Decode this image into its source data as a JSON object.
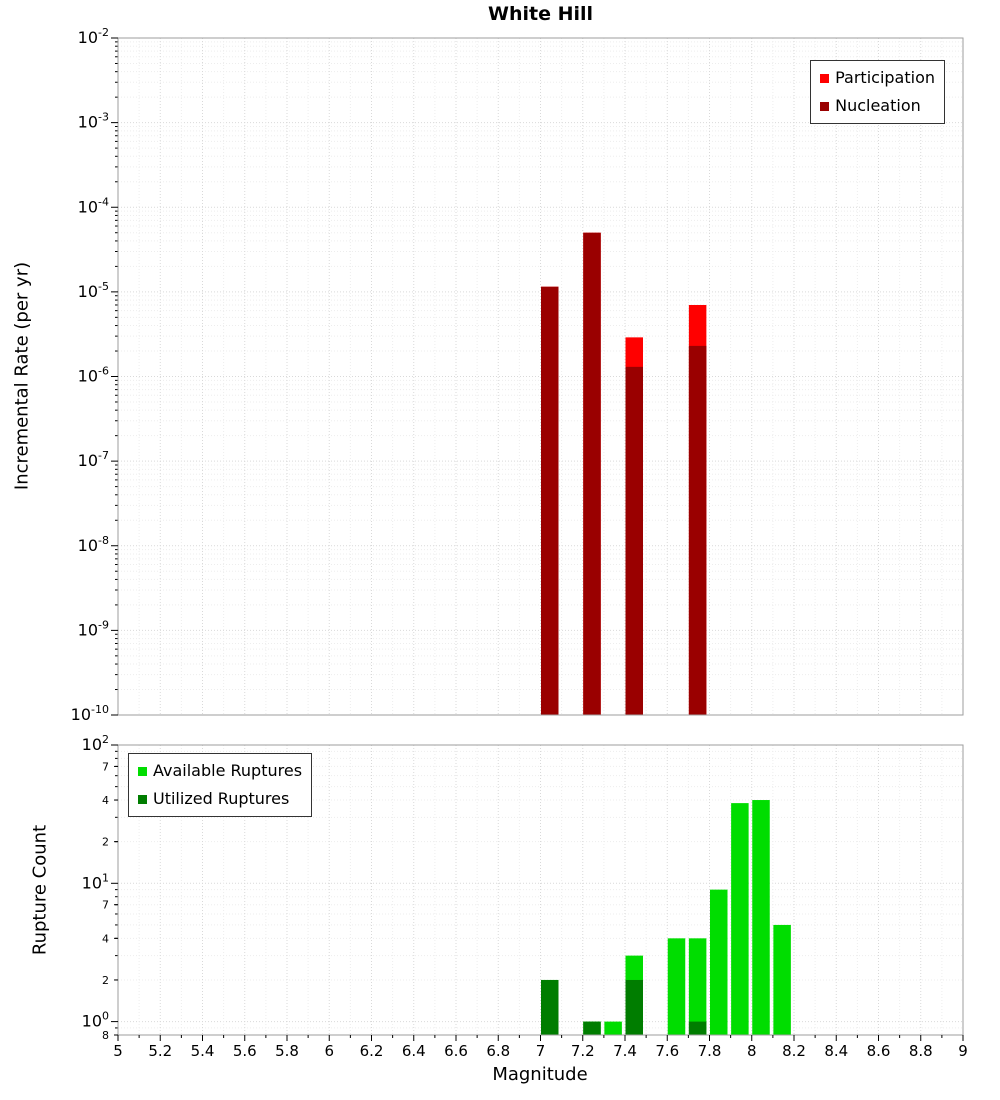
{
  "title": "White Hill",
  "x_axis": {
    "label": "Magnitude",
    "min": 5,
    "max": 9,
    "ticks": [
      {
        "v": 5,
        "label": "5"
      },
      {
        "v": 5.2,
        "label": "5.2"
      },
      {
        "v": 5.4,
        "label": "5.4"
      },
      {
        "v": 5.6,
        "label": "5.6"
      },
      {
        "v": 5.8,
        "label": "5.8"
      },
      {
        "v": 6,
        "label": "6"
      },
      {
        "v": 6.2,
        "label": "6.2"
      },
      {
        "v": 6.4,
        "label": "6.4"
      },
      {
        "v": 6.6,
        "label": "6.6"
      },
      {
        "v": 6.8,
        "label": "6.8"
      },
      {
        "v": 7,
        "label": "7"
      },
      {
        "v": 7.2,
        "label": "7.2"
      },
      {
        "v": 7.4,
        "label": "7.4"
      },
      {
        "v": 7.6,
        "label": "7.6"
      },
      {
        "v": 7.8,
        "label": "7.8"
      },
      {
        "v": 8,
        "label": "8"
      },
      {
        "v": 8.2,
        "label": "8.2"
      },
      {
        "v": 8.4,
        "label": "8.4"
      },
      {
        "v": 8.6,
        "label": "8.6"
      },
      {
        "v": 8.8,
        "label": "8.8"
      },
      {
        "v": 9,
        "label": "9"
      }
    ]
  },
  "chart_data": [
    {
      "type": "bar",
      "title": "White Hill",
      "ylabel": "Incremental Rate (per yr)",
      "xlabel": "Magnitude",
      "yscale": "log",
      "ylim": [
        1e-10,
        0.01
      ],
      "xlim": [
        5,
        9
      ],
      "bin_width_mag": 0.1,
      "legend_position": "top-right",
      "grid": true,
      "y_ticks": [
        {
          "v": 0.01,
          "label": "10^-2"
        },
        {
          "v": 0.001,
          "label": "10^-3"
        },
        {
          "v": 0.0001,
          "label": "10^-4"
        },
        {
          "v": 1e-05,
          "label": "10^-5"
        },
        {
          "v": 1e-06,
          "label": "10^-6"
        },
        {
          "v": 1e-07,
          "label": "10^-7"
        },
        {
          "v": 1e-08,
          "label": "10^-8"
        },
        {
          "v": 1e-09,
          "label": "10^-9"
        },
        {
          "v": 1e-10,
          "label": "10^-10"
        }
      ],
      "series": [
        {
          "name": "Participation",
          "color": "#ff0000",
          "points": [
            [
              7.0,
              1.15e-05
            ],
            [
              7.2,
              5e-05
            ],
            [
              7.4,
              2.9e-06
            ],
            [
              7.7,
              7e-06
            ]
          ]
        },
        {
          "name": "Nucleation",
          "color": "#9a0000",
          "points": [
            [
              7.0,
              1.15e-05
            ],
            [
              7.2,
              5e-05
            ],
            [
              7.4,
              1.3e-06
            ],
            [
              7.7,
              2.3e-06
            ]
          ]
        }
      ]
    },
    {
      "type": "bar",
      "title": "",
      "ylabel": "Rupture Count",
      "xlabel": "Magnitude",
      "yscale": "log",
      "ylim": [
        0.8,
        100
      ],
      "xlim": [
        5,
        9
      ],
      "bin_width_mag": 0.1,
      "legend_position": "top-left",
      "grid": true,
      "y_ticks": [
        {
          "v": 100,
          "label": "10^2"
        },
        {
          "v": 70,
          "label": "7",
          "minor": true
        },
        {
          "v": 40,
          "label": "4",
          "minor": true
        },
        {
          "v": 20,
          "label": "2",
          "minor": true
        },
        {
          "v": 10,
          "label": "10^1"
        },
        {
          "v": 7,
          "label": "7",
          "minor": true
        },
        {
          "v": 4,
          "label": "4",
          "minor": true
        },
        {
          "v": 2,
          "label": "2",
          "minor": true
        },
        {
          "v": 1,
          "label": "10^0"
        },
        {
          "v": 0.8,
          "label": "8",
          "minor": true
        }
      ],
      "series": [
        {
          "name": "Available Ruptures",
          "color": "#00dd00",
          "points": [
            [
              7.0,
              2
            ],
            [
              7.2,
              1
            ],
            [
              7.3,
              1
            ],
            [
              7.4,
              3
            ],
            [
              7.6,
              4
            ],
            [
              7.7,
              4
            ],
            [
              7.8,
              9
            ],
            [
              7.9,
              38
            ],
            [
              8.0,
              40
            ],
            [
              8.1,
              5
            ]
          ]
        },
        {
          "name": "Utilized Ruptures",
          "color": "#007d00",
          "points": [
            [
              7.0,
              2
            ],
            [
              7.2,
              1
            ],
            [
              7.4,
              2
            ],
            [
              7.7,
              1
            ]
          ]
        }
      ]
    }
  ]
}
